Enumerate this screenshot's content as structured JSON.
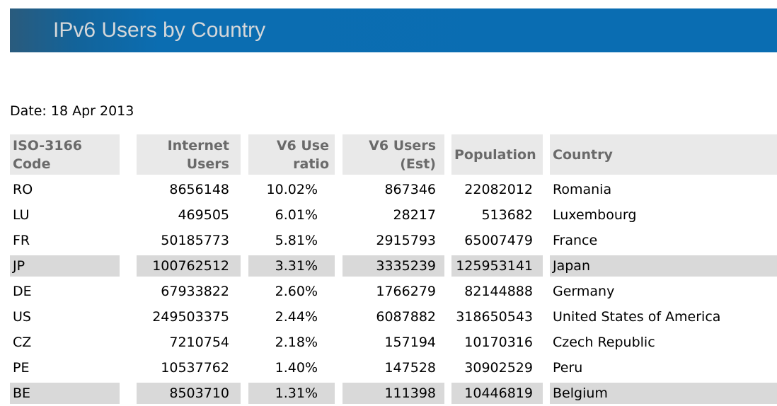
{
  "banner": {
    "title": "IPv6 Users by Country",
    "background_color": "#0a6db2",
    "gradient_left_color": "#2a5b7d",
    "title_color": "#d5d7d9"
  },
  "date_label": "Date: 18 Apr 2013",
  "table": {
    "header_bg_color": "#e9e9e9",
    "highlight_row_bg_color": "#d9d9d9",
    "columns": [
      {
        "line1": "ISO-3166",
        "line2": "Code"
      },
      {
        "line1": "Internet",
        "line2": "Users"
      },
      {
        "line1": "V6 Use",
        "line2": "ratio"
      },
      {
        "line1": "V6 Users",
        "line2": "(Est)"
      },
      {
        "line1": "Population",
        "line2": ""
      },
      {
        "line1": "Country",
        "line2": ""
      }
    ],
    "rows": [
      {
        "code": "RO",
        "internet_users": "8656148",
        "v6_use_ratio": "10.02%",
        "v6_users_est": "867346",
        "population": "22082012",
        "country": "Romania",
        "highlight": false
      },
      {
        "code": "LU",
        "internet_users": "469505",
        "v6_use_ratio": "6.01%",
        "v6_users_est": "28217",
        "population": "513682",
        "country": "Luxembourg",
        "highlight": false
      },
      {
        "code": "FR",
        "internet_users": "50185773",
        "v6_use_ratio": "5.81%",
        "v6_users_est": "2915793",
        "population": "65007479",
        "country": "France",
        "highlight": false
      },
      {
        "code": "JP",
        "internet_users": "100762512",
        "v6_use_ratio": "3.31%",
        "v6_users_est": "3335239",
        "population": "125953141",
        "country": "Japan",
        "highlight": true
      },
      {
        "code": "DE",
        "internet_users": "67933822",
        "v6_use_ratio": "2.60%",
        "v6_users_est": "1766279",
        "population": "82144888",
        "country": "Germany",
        "highlight": false
      },
      {
        "code": "US",
        "internet_users": "249503375",
        "v6_use_ratio": "2.44%",
        "v6_users_est": "6087882",
        "population": "318650543",
        "country": "United States of America",
        "highlight": false
      },
      {
        "code": "CZ",
        "internet_users": "7210754",
        "v6_use_ratio": "2.18%",
        "v6_users_est": "157194",
        "population": "10170316",
        "country": "Czech Republic",
        "highlight": false
      },
      {
        "code": "PE",
        "internet_users": "10537762",
        "v6_use_ratio": "1.40%",
        "v6_users_est": "147528",
        "population": "30902529",
        "country": "Peru",
        "highlight": false
      },
      {
        "code": "BE",
        "internet_users": "8503710",
        "v6_use_ratio": "1.31%",
        "v6_users_est": "111398",
        "population": "10446819",
        "country": "Belgium",
        "highlight": true
      }
    ]
  }
}
